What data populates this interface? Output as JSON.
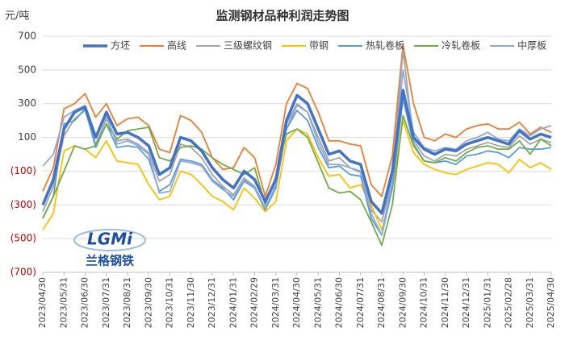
{
  "chart_data": {
    "type": "line",
    "title": "监测钢材品种利润走势图",
    "y_label": "元/吨",
    "logo_text": "LGMi",
    "logo_caption": "兰格钢铁",
    "categories": [
      "2023/04/30",
      null,
      "2023/05/31",
      null,
      "2023/06/30",
      null,
      "2023/07/31",
      null,
      "2023/08/31",
      null,
      "2023/09/30",
      null,
      "2023/10/31",
      null,
      "2023/11/30",
      null,
      "2023/12/31",
      null,
      "2024/01/31",
      null,
      "2024/02/29",
      null,
      "2024/03/31",
      null,
      "2024/04/30",
      null,
      "2024/05/31",
      null,
      "2024/06/30",
      null,
      "2024/07/31",
      null,
      "2024/08/31",
      null,
      "2024/09/30",
      null,
      "2024/10/31",
      null,
      "2024/11/30",
      null,
      "2024/12/31",
      null,
      "2025/01/31",
      null,
      "2025/02/28",
      null,
      "2025/03/31",
      null,
      "2025/04/30"
    ],
    "ylim": [
      -700,
      700
    ],
    "yticks": [
      700,
      500,
      300,
      100,
      {
        "value": -100,
        "label": "(100)"
      },
      {
        "value": -300,
        "label": "(300)"
      },
      {
        "value": -500,
        "label": "(500)"
      },
      {
        "value": -700,
        "label": "(700)"
      }
    ],
    "grid": true,
    "legend": "top",
    "series": [
      {
        "name": "方坯",
        "color": "#4472c4",
        "width": 3.5,
        "values": [
          -300,
          -150,
          150,
          250,
          280,
          100,
          250,
          120,
          130,
          100,
          50,
          -120,
          -80,
          100,
          80,
          20,
          -80,
          -150,
          -200,
          -100,
          -150,
          -280,
          -150,
          200,
          350,
          300,
          150,
          0,
          20,
          -40,
          -60,
          -280,
          -350,
          -100,
          380,
          100,
          30,
          0,
          30,
          20,
          60,
          80,
          100,
          80,
          60,
          140,
          90,
          120,
          100
        ]
      },
      {
        "name": "高线",
        "color": "#ed7d31",
        "width": 1.8,
        "values": [
          -220,
          -80,
          270,
          300,
          360,
          220,
          300,
          170,
          210,
          220,
          170,
          30,
          10,
          230,
          200,
          130,
          -20,
          -90,
          -80,
          40,
          -20,
          -250,
          -60,
          300,
          420,
          390,
          250,
          80,
          80,
          60,
          50,
          -180,
          -250,
          -10,
          650,
          300,
          100,
          80,
          120,
          100,
          150,
          170,
          180,
          150,
          150,
          190,
          120,
          160,
          130
        ]
      },
      {
        "name": "三级螺纹钢",
        "color": "#a5a5a5",
        "width": 1.8,
        "values": [
          -340,
          -190,
          110,
          210,
          260,
          60,
          210,
          80,
          90,
          60,
          10,
          -160,
          -120,
          60,
          40,
          -20,
          -120,
          -190,
          -240,
          -140,
          -190,
          -320,
          -190,
          150,
          290,
          250,
          100,
          -40,
          -20,
          -80,
          -100,
          -330,
          -400,
          -150,
          620,
          80,
          -10,
          -40,
          0,
          -10,
          30,
          50,
          70,
          50,
          40,
          110,
          60,
          90,
          70
        ]
      },
      {
        "name": "带钢",
        "color": "#ffc000",
        "width": 1.8,
        "values": [
          -450,
          -350,
          20,
          50,
          30,
          -20,
          80,
          -40,
          -50,
          -60,
          -180,
          -270,
          -250,
          -100,
          -120,
          -180,
          -250,
          -280,
          -330,
          -200,
          -260,
          -340,
          -280,
          80,
          150,
          120,
          -20,
          -130,
          -120,
          -200,
          -180,
          -300,
          -450,
          -200,
          200,
          10,
          -60,
          -90,
          -110,
          -120,
          -90,
          -70,
          -50,
          -60,
          -110,
          -30,
          -80,
          -50,
          -90
        ]
      },
      {
        "name": "热轧卷板",
        "color": "#5b9bd5",
        "width": 1.8,
        "values": [
          -380,
          -250,
          180,
          200,
          270,
          40,
          180,
          40,
          50,
          40,
          -30,
          -220,
          -180,
          -30,
          -40,
          -60,
          -150,
          -200,
          -270,
          -160,
          -200,
          -330,
          -200,
          150,
          260,
          200,
          40,
          -80,
          -70,
          -120,
          -130,
          -380,
          -480,
          -200,
          330,
          60,
          -40,
          -50,
          -40,
          -60,
          -10,
          0,
          20,
          10,
          -20,
          40,
          30,
          30,
          40
        ]
      },
      {
        "name": "冷轧卷板",
        "color": "#70ad47",
        "width": 1.8,
        "values": [
          -380,
          -250,
          -100,
          50,
          30,
          50,
          180,
          90,
          140,
          150,
          160,
          -20,
          -40,
          40,
          50,
          30,
          -20,
          -60,
          -90,
          -120,
          -80,
          -300,
          -130,
          120,
          150,
          100,
          -50,
          -200,
          -230,
          -220,
          -270,
          -400,
          -540,
          -300,
          230,
          50,
          -40,
          -50,
          -20,
          -40,
          10,
          40,
          50,
          30,
          30,
          80,
          0,
          90,
          50
        ]
      },
      {
        "name": "中厚板",
        "color": "#8faadc",
        "width": 1.8,
        "values": [
          -70,
          0,
          220,
          260,
          290,
          100,
          230,
          60,
          80,
          50,
          0,
          -230,
          -220,
          -40,
          -50,
          -70,
          -160,
          -210,
          -250,
          -150,
          -190,
          -320,
          -180,
          180,
          300,
          250,
          70,
          -60,
          -60,
          -80,
          -110,
          -350,
          -480,
          -150,
          500,
          130,
          40,
          20,
          40,
          30,
          80,
          100,
          130,
          90,
          80,
          150,
          110,
          150,
          170
        ]
      }
    ]
  }
}
